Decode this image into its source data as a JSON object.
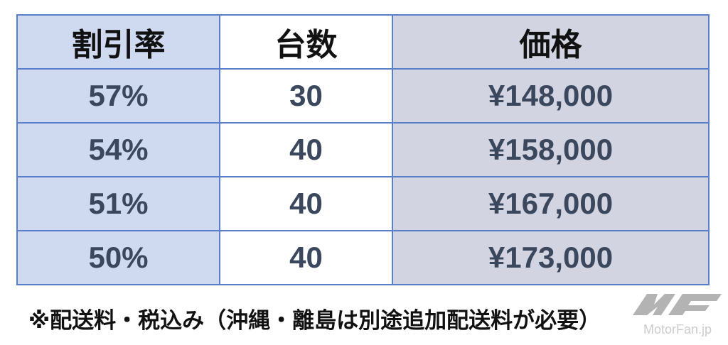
{
  "table": {
    "headers": [
      "割引率",
      "台数",
      "価格"
    ],
    "rows": [
      [
        "57%",
        "30",
        "¥148,000"
      ],
      [
        "54%",
        "40",
        "¥158,000"
      ],
      [
        "51%",
        "40",
        "¥167,000"
      ],
      [
        "50%",
        "40",
        "¥173,000"
      ]
    ]
  },
  "note": "※配送料・税込み（沖縄・離島は別途追加配送料が必要）",
  "watermark": "MotorFan.jp",
  "colors": {
    "border": "#5a7fc8",
    "header_bg": "#d9d9d9",
    "col1_bg": "#cfdaf1",
    "col3_bg": "#d2d5e1",
    "text": "#3a475c"
  }
}
